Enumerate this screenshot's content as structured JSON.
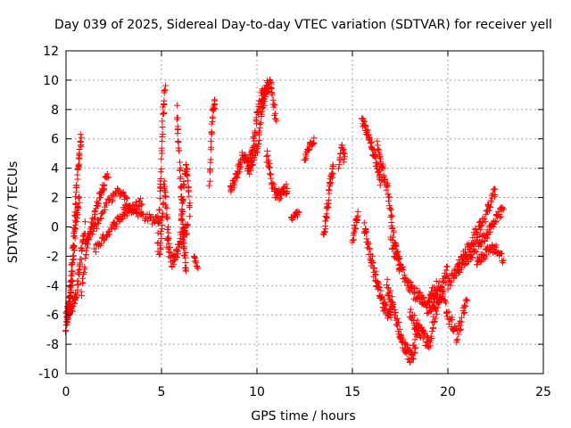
{
  "chart_data": {
    "type": "scatter",
    "title": "Day 039 of 2025, Sidereal Day-to-day VTEC variation (SDTVAR) for receiver yell",
    "xlabel": "GPS time / hours",
    "ylabel": "SDTVAR / TECUs",
    "xlim": [
      0,
      25
    ],
    "ylim": [
      -10,
      12
    ],
    "xticks": [
      0,
      5,
      10,
      15,
      20,
      25
    ],
    "yticks": [
      -10,
      -8,
      -6,
      -4,
      -2,
      0,
      2,
      4,
      6,
      8,
      10,
      12
    ],
    "xtick_labels": [
      "0",
      "5",
      "10",
      "15",
      "20",
      "25"
    ],
    "ytick_labels": [
      "-10",
      "-8",
      "-6",
      "-4",
      "-2",
      "0",
      "2",
      "4",
      "6",
      "8",
      "10",
      "12"
    ],
    "grid": true,
    "marker": "+",
    "marker_color": "#ff0000",
    "segments": [
      {
        "x0": 0.0,
        "x1": 0.8,
        "y": [
          -6.5,
          -4.5,
          -1.0,
          3.5,
          6.2
        ],
        "noise": 1.0,
        "n": 80
      },
      {
        "x0": 0.0,
        "x1": 0.7,
        "y": [
          -6.8,
          -5.5,
          -3.0,
          0.5,
          2.0
        ],
        "noise": 0.9,
        "n": 60
      },
      {
        "x0": 0.1,
        "x1": 1.0,
        "y": [
          -6.0,
          -5.5,
          -4.5,
          -2.0,
          0.0
        ],
        "noise": 0.8,
        "n": 60
      },
      {
        "x0": 0.8,
        "x1": 2.2,
        "y": [
          -4.5,
          -1.0,
          1.0,
          2.5,
          3.5
        ],
        "noise": 0.6,
        "n": 60
      },
      {
        "x0": 1.0,
        "x1": 3.2,
        "y": [
          -1.0,
          0.0,
          1.5,
          2.4,
          2.0
        ],
        "noise": 0.5,
        "n": 60
      },
      {
        "x0": 1.5,
        "x1": 4.0,
        "y": [
          -1.5,
          -0.5,
          0.5,
          1.2,
          1.8
        ],
        "noise": 0.6,
        "n": 70
      },
      {
        "x0": 3.0,
        "x1": 5.0,
        "y": [
          1.5,
          1.2,
          0.8,
          0.5,
          0.5
        ],
        "noise": 0.6,
        "n": 50
      },
      {
        "x0": 4.8,
        "x1": 5.2,
        "y": [
          -1.5,
          2.0,
          5.0,
          8.0,
          9.5
        ],
        "noise": 0.8,
        "n": 40
      },
      {
        "x0": 4.9,
        "x1": 5.4,
        "y": [
          -2.0,
          0.0,
          3.0,
          1.0,
          -1.5
        ],
        "noise": 0.8,
        "n": 40
      },
      {
        "x0": 5.3,
        "x1": 6.4,
        "y": [
          -1.0,
          -2.5,
          -1.5,
          -0.5,
          0.0
        ],
        "noise": 0.9,
        "n": 60
      },
      {
        "x0": 5.8,
        "x1": 6.3,
        "y": [
          8.0,
          5.0,
          2.0,
          -1.0,
          -3.0
        ],
        "noise": 0.9,
        "n": 50
      },
      {
        "x0": 6.0,
        "x1": 6.5,
        "y": [
          0.0,
          2.0,
          4.0,
          3.5,
          1.0
        ],
        "noise": 0.8,
        "n": 40
      },
      {
        "x0": 6.7,
        "x1": 6.9,
        "y": [
          -2.0,
          -2.8
        ],
        "noise": 0.3,
        "n": 10
      },
      {
        "x0": 7.5,
        "x1": 7.8,
        "y": [
          3.0,
          6.0,
          8.0,
          8.5
        ],
        "noise": 0.6,
        "n": 30
      },
      {
        "x0": 8.6,
        "x1": 10.0,
        "y": [
          2.5,
          3.5,
          5.0,
          4.0,
          5.5
        ],
        "noise": 0.9,
        "n": 70
      },
      {
        "x0": 9.5,
        "x1": 10.5,
        "y": [
          4.0,
          5.0,
          7.5,
          9.0,
          9.2
        ],
        "noise": 0.8,
        "n": 60
      },
      {
        "x0": 10.0,
        "x1": 11.0,
        "y": [
          5.0,
          8.0,
          9.5,
          9.8,
          7.0
        ],
        "noise": 0.8,
        "n": 60
      },
      {
        "x0": 10.5,
        "x1": 11.6,
        "y": [
          5.0,
          3.0,
          2.0,
          2.5,
          2.5
        ],
        "noise": 0.8,
        "n": 60
      },
      {
        "x0": 11.8,
        "x1": 12.2,
        "y": [
          0.5,
          1.0
        ],
        "noise": 0.4,
        "n": 15
      },
      {
        "x0": 12.5,
        "x1": 13.0,
        "y": [
          4.5,
          5.5,
          6.0
        ],
        "noise": 0.6,
        "n": 30
      },
      {
        "x0": 13.5,
        "x1": 14.0,
        "y": [
          -0.5,
          1.0,
          3.0,
          4.0
        ],
        "noise": 0.7,
        "n": 40
      },
      {
        "x0": 14.3,
        "x1": 14.6,
        "y": [
          4.0,
          5.5,
          4.5
        ],
        "noise": 0.6,
        "n": 20
      },
      {
        "x0": 15.0,
        "x1": 15.3,
        "y": [
          -1.0,
          0.0,
          1.0
        ],
        "noise": 0.6,
        "n": 20
      },
      {
        "x0": 15.5,
        "x1": 16.5,
        "y": [
          7.2,
          6.5,
          5.5,
          4.5,
          3.0
        ],
        "noise": 0.6,
        "n": 60
      },
      {
        "x0": 15.6,
        "x1": 17.0,
        "y": [
          0.0,
          -2.0,
          -4.0,
          -5.5,
          -6.0
        ],
        "noise": 0.9,
        "n": 80
      },
      {
        "x0": 16.3,
        "x1": 17.5,
        "y": [
          5.5,
          4.0,
          2.0,
          -1.0,
          -3.0
        ],
        "noise": 0.9,
        "n": 70
      },
      {
        "x0": 16.8,
        "x1": 18.5,
        "y": [
          -4.0,
          -6.0,
          -8.0,
          -9.0,
          -7.0
        ],
        "noise": 1.0,
        "n": 90
      },
      {
        "x0": 17.0,
        "x1": 19.5,
        "y": [
          -1.0,
          -3.0,
          -4.5,
          -5.5,
          -5.0
        ],
        "noise": 1.0,
        "n": 100
      },
      {
        "x0": 18.0,
        "x1": 20.0,
        "y": [
          -6.0,
          -7.0,
          -8.0,
          -5.0,
          -3.0
        ],
        "noise": 1.0,
        "n": 90
      },
      {
        "x0": 19.0,
        "x1": 21.0,
        "y": [
          -5.0,
          -4.0,
          -6.0,
          -7.5,
          -5.0
        ],
        "noise": 1.0,
        "n": 80
      },
      {
        "x0": 20.0,
        "x1": 22.5,
        "y": [
          -4.0,
          -2.5,
          -1.0,
          0.5,
          2.5
        ],
        "noise": 0.8,
        "n": 90
      },
      {
        "x0": 20.5,
        "x1": 22.9,
        "y": [
          -3.0,
          -2.0,
          -1.0,
          0.0,
          1.2
        ],
        "noise": 0.8,
        "n": 90
      },
      {
        "x0": 21.5,
        "x1": 22.9,
        "y": [
          -2.5,
          -2.0,
          -1.5,
          -1.5,
          -2.2
        ],
        "noise": 0.6,
        "n": 50
      }
    ]
  }
}
